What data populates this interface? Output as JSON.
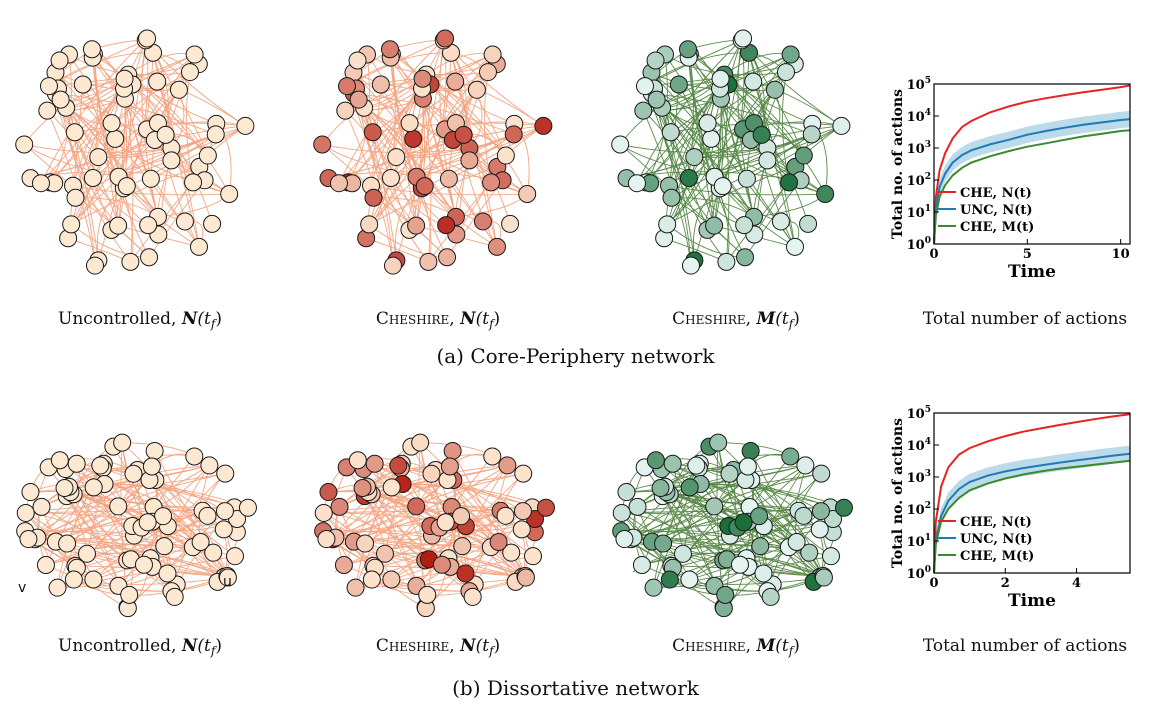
{
  "row_a": {
    "caption": "(a) Core-Periphery network",
    "panel_captions": [
      {
        "prefix": "Uncontrolled, ",
        "symbol": "N",
        "arg": "(t",
        "sub": "f",
        "close": ")"
      },
      {
        "prefix": "Cheshire, ",
        "symbol": "N",
        "arg": "(t",
        "sub": "f",
        "close": ")"
      },
      {
        "prefix": "Cheshire, ",
        "symbol": "M",
        "arg": "(t",
        "sub": "f",
        "close": ")"
      },
      {
        "prefix": "Total number of actions",
        "symbol": "",
        "arg": "",
        "sub": "",
        "close": ""
      }
    ]
  },
  "row_b": {
    "caption": "(b) Dissortative network",
    "panel_captions": [
      {
        "prefix": "Uncontrolled, ",
        "symbol": "N",
        "arg": "(t",
        "sub": "f",
        "close": ")"
      },
      {
        "prefix": "Cheshire, ",
        "symbol": "N",
        "arg": "(t",
        "sub": "f",
        "close": ")"
      },
      {
        "prefix": "Cheshire, ",
        "symbol": "M",
        "arg": "(t",
        "sub": "f",
        "close": ")"
      },
      {
        "prefix": "Total number of actions",
        "symbol": "",
        "arg": "",
        "sub": "",
        "close": ""
      }
    ],
    "node_labels": {
      "left": "v",
      "right": "u"
    }
  },
  "colors": {
    "edge_orange": "#f4a582",
    "edge_green": "#5a8a4a",
    "node_pale": "#fde9d2",
    "che_red": "#e8231f",
    "unc_blue": "#1f7bb4",
    "unc_band": "#9ecae1",
    "che_m_green": "#3a8a2e"
  },
  "chart_data": [
    {
      "type": "line",
      "xlabel": "Time",
      "ylabel": "Total no. of actions",
      "xlim": [
        0,
        10.5
      ],
      "ylim": [
        1,
        100000
      ],
      "yscale": "log",
      "xticks": [
        "0",
        "5",
        "10"
      ],
      "yticks": [
        "10^0",
        "10^1",
        "10^2",
        "10^3",
        "10^4",
        "10^5"
      ],
      "legend": "bottom-left",
      "x": [
        0,
        0.1,
        0.3,
        0.6,
        1,
        1.5,
        2,
        3,
        4,
        5,
        6,
        7,
        8,
        9,
        10,
        10.5
      ],
      "series": [
        {
          "name": "CHE, N(t)",
          "color": "#e8231f",
          "values": [
            1,
            30,
            200,
            700,
            2000,
            4500,
            7000,
            13000,
            20000,
            28000,
            36000,
            45000,
            55000,
            66000,
            80000,
            90000
          ]
        },
        {
          "name": "UNC, N(t)",
          "color": "#1f7bb4",
          "values": [
            1,
            15,
            60,
            160,
            350,
            600,
            850,
            1300,
            1800,
            2600,
            3400,
            4300,
            5300,
            6300,
            7500,
            8000
          ]
        },
        {
          "name": "CHE, M(t)",
          "color": "#3a8a2e",
          "values": [
            1,
            8,
            30,
            70,
            140,
            240,
            350,
            550,
            800,
            1100,
            1400,
            1800,
            2300,
            2800,
            3400,
            3600
          ]
        }
      ]
    },
    {
      "type": "line",
      "xlabel": "Time",
      "ylabel": "Total no. of actions",
      "xlim": [
        0,
        5.5
      ],
      "ylim": [
        1,
        100000
      ],
      "yscale": "log",
      "xticks": [
        "0",
        "2",
        "4"
      ],
      "yticks": [
        "10^0",
        "10^1",
        "10^2",
        "10^3",
        "10^4",
        "10^5"
      ],
      "legend": "bottom-left",
      "x": [
        0,
        0.05,
        0.2,
        0.4,
        0.7,
        1,
        1.5,
        2,
        2.5,
        3,
        3.5,
        4,
        4.5,
        5,
        5.5
      ],
      "series": [
        {
          "name": "CHE, N(t)",
          "color": "#e8231f",
          "values": [
            1,
            40,
            500,
            2000,
            5000,
            8000,
            13000,
            19000,
            26000,
            33000,
            42000,
            52000,
            64000,
            78000,
            92000
          ]
        },
        {
          "name": "UNC, N(t)",
          "color": "#1f7bb4",
          "values": [
            1,
            10,
            60,
            180,
            420,
            700,
            1100,
            1500,
            1900,
            2300,
            2800,
            3300,
            3900,
            4600,
            5300
          ]
        },
        {
          "name": "CHE, M(t)",
          "color": "#3a8a2e",
          "values": [
            1,
            8,
            40,
            100,
            220,
            380,
            620,
            900,
            1200,
            1500,
            1800,
            2100,
            2400,
            2800,
            3200
          ]
        }
      ]
    }
  ]
}
